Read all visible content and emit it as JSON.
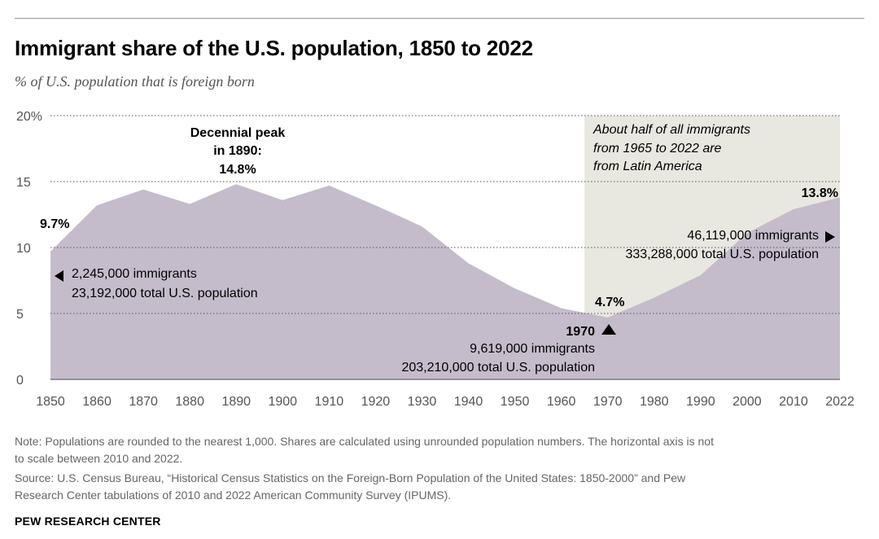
{
  "chart_data": {
    "type": "area",
    "title": "Immigrant share of the U.S. population, 1850 to 2022",
    "subtitle": "% of U.S. population that is foreign born",
    "x": [
      1850,
      1860,
      1870,
      1880,
      1890,
      1900,
      1910,
      1920,
      1930,
      1940,
      1950,
      1960,
      1970,
      1980,
      1990,
      2000,
      2010,
      2022
    ],
    "values": [
      9.7,
      13.2,
      14.4,
      13.3,
      14.8,
      13.6,
      14.7,
      13.2,
      11.6,
      8.8,
      6.9,
      5.4,
      4.7,
      6.2,
      7.9,
      11.1,
      12.9,
      13.8
    ],
    "ylim": [
      0,
      20
    ],
    "yticks": [
      0,
      5,
      10,
      15,
      20
    ],
    "ytick_labels": [
      "0",
      "5",
      "10",
      "15",
      "20%"
    ],
    "xtick_labels": [
      "1850",
      "1860",
      "1870",
      "1880",
      "1890",
      "1900",
      "1910",
      "1920",
      "1930",
      "1940",
      "1950",
      "1960",
      "1970",
      "1980",
      "1990",
      "2000",
      "2010",
      "2022"
    ],
    "shaded_region": {
      "from": 1965,
      "to": 2022
    },
    "annotations": {
      "peak": {
        "line1": "Decennial peak",
        "line2": "in 1890:",
        "line3": "14.8%"
      },
      "start_value": "9.7%",
      "start_immigrants": "2,245,000 immigrants",
      "start_total": "23,192,000 total U.S. population",
      "low_value": "4.7%",
      "low_year": "1970",
      "low_immigrants": "9,619,000 immigrants",
      "low_total": "203,210,000 total U.S. population",
      "end_value": "13.8%",
      "end_immigrants": "46,119,000 immigrants",
      "end_total": "333,288,000 total U.S. population",
      "region_line1": "About half of all immigrants",
      "region_line2": "from 1965 to 2022 are",
      "region_line3": "from Latin America"
    }
  },
  "colors": {
    "area": "#c4bccb",
    "shade": "#e8e7e0",
    "grid": "#555555",
    "axis": "#666666"
  },
  "footer": {
    "note_line1": "Note: Populations are rounded to the nearest 1,000. Shares are calculated using unrounded population numbers. The horizontal axis is not",
    "note_line2": "to scale between 2010 and 2022.",
    "source_line1": "Source: U.S. Census Bureau, “Historical Census Statistics on the Foreign-Born Population of the United States: 1850-2000” and Pew",
    "source_line2": "Research Center tabulations of 2010 and 2022 American Community Survey (IPUMS).",
    "brand": "PEW RESEARCH CENTER"
  }
}
